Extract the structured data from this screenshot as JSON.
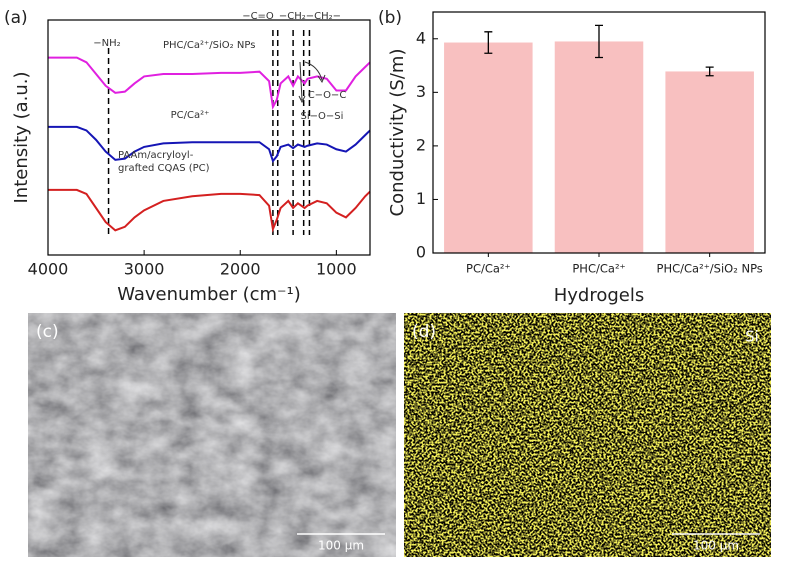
{
  "panel_labels": [
    "(a)",
    "(b)",
    "(c)",
    "(d)"
  ],
  "chart_data": [
    {
      "type": "line",
      "x_label": "Wavenumber (cm⁻¹)",
      "y_label": "Intensity (a.u.)",
      "x": [
        4000,
        3800,
        3700,
        3600,
        3500,
        3400,
        3300,
        3200,
        3100,
        3000,
        2800,
        2500,
        2200,
        2000,
        1800,
        1700,
        1660,
        1620,
        1580,
        1500,
        1450,
        1400,
        1330,
        1300,
        1200,
        1100,
        1000,
        900,
        800,
        700,
        650
      ],
      "xlim": [
        4000,
        650
      ],
      "xticks": [
        4000,
        3000,
        2000,
        1000
      ],
      "ylim": [
        0,
        10
      ],
      "series": [
        {
          "name": "PHC/Ca²⁺/SiO₂ NPs",
          "color": "#e020e0",
          "values": [
            8.4,
            8.4,
            8.4,
            8.2,
            7.7,
            7.2,
            6.9,
            6.95,
            7.3,
            7.6,
            7.7,
            7.7,
            7.75,
            7.75,
            7.8,
            7.4,
            6.3,
            6.6,
            7.3,
            7.6,
            7.2,
            7.6,
            7.3,
            7.5,
            7.6,
            7.5,
            7.0,
            7.0,
            7.6,
            8.0,
            8.2
          ]
        },
        {
          "name": "PC/Ca²⁺",
          "color": "#1515b5",
          "values": [
            5.45,
            5.45,
            5.45,
            5.3,
            4.9,
            4.4,
            4.05,
            4.1,
            4.4,
            4.6,
            4.75,
            4.8,
            4.8,
            4.8,
            4.8,
            4.5,
            4.0,
            4.2,
            4.6,
            4.7,
            4.55,
            4.7,
            4.6,
            4.65,
            4.75,
            4.7,
            4.5,
            4.4,
            4.7,
            5.1,
            5.3
          ]
        },
        {
          "name": "PAAm/acryloyl-\ngrafted CQAS (PC)",
          "color": "#d42020",
          "values": [
            2.77,
            2.77,
            2.77,
            2.6,
            2.0,
            1.4,
            1.05,
            1.2,
            1.6,
            1.9,
            2.3,
            2.5,
            2.6,
            2.6,
            2.55,
            2.1,
            1.1,
            1.5,
            2.0,
            2.3,
            2.0,
            2.2,
            2.0,
            2.1,
            2.3,
            2.2,
            1.8,
            1.6,
            2.0,
            2.5,
            2.7
          ]
        }
      ],
      "reference_lines": [
        3370,
        1660,
        1610,
        1450,
        1340,
        1280
      ],
      "annotations": [
        "−NH₂",
        "−C=O",
        "−CH₂−CH₂−",
        "C−O−C",
        "Si−O−Si"
      ]
    },
    {
      "type": "bar",
      "x_label": "Hydrogels",
      "y_label": "Conductivity (S/m)",
      "categories": [
        "PC/Ca²⁺",
        "PHC/Ca²⁺",
        "PHC/Ca²⁺/SiO₂ NPs"
      ],
      "values": [
        3.93,
        3.95,
        3.39
      ],
      "errors": [
        0.2,
        0.3,
        0.08
      ],
      "color": "#f8c0c0",
      "ylim": [
        0,
        4.5
      ],
      "yticks": [
        0,
        1,
        2,
        3,
        4
      ]
    }
  ],
  "images": [
    {
      "scale_bar": "100 µm"
    },
    {
      "scale_bar": "100 µm",
      "element": "Si"
    }
  ]
}
